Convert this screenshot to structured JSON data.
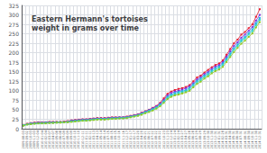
{
  "chart_data": {
    "type": "line",
    "title": "Eastern Hermann's tortoises\nweight in grams over time",
    "categories": [
      "2009-08-03",
      "2009-09-02",
      "2009-10-03",
      "2009-11-03",
      "2009-12-04",
      "2010-01-04",
      "2010-02-04",
      "2010-03-07",
      "2010-04-07",
      "2010-05-08",
      "2010-06-08",
      "2010-07-09",
      "2010-08-09",
      "2010-09-09",
      "2010-10-10",
      "2010-11-10",
      "2010-12-11",
      "2011-01-11",
      "2011-02-11",
      "2011-03-13",
      "2011-04-13",
      "2011-05-14",
      "2011-06-14",
      "2011-07-15",
      "2011-08-15",
      "2011-09-15",
      "2011-10-16",
      "2011-11-16",
      "2011-12-17",
      "2012-01-17",
      "2012-02-17",
      "2012-03-20",
      "2012-04-20",
      "2012-05-21",
      "2012-06-21",
      "2012-07-22",
      "2012-08-22",
      "2012-09-22",
      "2012-10-23",
      "2012-11-23",
      "2012-12-24",
      "2013-01-24",
      "2013-02-24",
      "2013-03-27",
      "2013-04-27",
      "2013-05-28",
      "2013-06-28",
      "2013-07-29",
      "2013-08-29",
      "2013-09-29",
      "2013-10-30",
      "2013-11-30",
      "2013-12-31",
      "2014-01-31",
      "2014-02-28",
      "2014-03-31",
      "2014-04-30",
      "2014-05-31",
      "2014-06-30",
      "2014-07-31",
      "2014-08-31",
      "2014-09-30",
      "2014-10-31",
      "2014-11-30",
      "2014-12-31"
    ],
    "series": [
      {
        "color": "#e8192c",
        "marker": "square",
        "values": [
          10,
          13,
          15,
          16,
          17,
          17,
          17,
          18,
          18,
          18,
          18,
          19,
          20,
          22,
          23,
          24,
          25,
          25,
          26,
          27,
          28,
          28,
          28,
          29,
          30,
          30,
          30,
          30,
          32,
          34,
          36,
          38,
          42,
          46,
          50,
          55,
          60,
          68,
          80,
          92,
          98,
          102,
          105,
          107,
          110,
          115,
          125,
          135,
          140,
          148,
          155,
          162,
          168,
          172,
          180,
          195,
          210,
          225,
          235,
          248,
          255,
          265,
          275,
          295,
          315
        ]
      },
      {
        "color": "#8030e0",
        "marker": "square",
        "values": [
          9,
          12,
          14,
          15,
          16,
          16,
          16,
          17,
          17,
          17,
          17,
          18,
          19,
          21,
          22,
          23,
          24,
          24,
          25,
          26,
          27,
          27,
          27,
          28,
          29,
          29,
          30,
          30,
          31,
          33,
          35,
          37,
          41,
          45,
          49,
          54,
          59,
          66,
          76,
          88,
          94,
          98,
          100,
          103,
          107,
          112,
          120,
          130,
          136,
          144,
          150,
          158,
          164,
          168,
          176,
          190,
          204,
          218,
          228,
          240,
          248,
          258,
          268,
          285,
          300
        ]
      },
      {
        "color": "#20b0e8",
        "marker": "square",
        "values": [
          9,
          12,
          13,
          14,
          15,
          15,
          16,
          16,
          16,
          17,
          17,
          17,
          18,
          20,
          21,
          22,
          23,
          23,
          24,
          25,
          26,
          26,
          26,
          27,
          28,
          28,
          29,
          29,
          30,
          32,
          34,
          36,
          40,
          44,
          48,
          52,
          57,
          64,
          73,
          84,
          90,
          94,
          97,
          99,
          102,
          108,
          117,
          126,
          132,
          140,
          146,
          154,
          160,
          164,
          172,
          185,
          198,
          212,
          222,
          234,
          242,
          252,
          262,
          278,
          292
        ]
      },
      {
        "color": "#30d8c0",
        "marker": "square",
        "values": [
          9,
          11,
          13,
          14,
          14,
          15,
          15,
          16,
          16,
          16,
          17,
          17,
          18,
          19,
          20,
          21,
          22,
          22,
          23,
          24,
          25,
          25,
          25,
          26,
          27,
          27,
          28,
          28,
          29,
          31,
          33,
          35,
          38,
          42,
          46,
          50,
          55,
          62,
          71,
          81,
          87,
          91,
          94,
          96,
          99,
          104,
          113,
          122,
          128,
          136,
          142,
          150,
          156,
          160,
          168,
          181,
          194,
          208,
          218,
          230,
          238,
          248,
          257,
          273,
          287
        ]
      },
      {
        "color": "#90c820",
        "marker": "square",
        "values": [
          8,
          11,
          12,
          13,
          14,
          14,
          14,
          15,
          15,
          16,
          16,
          17,
          17,
          18,
          19,
          20,
          21,
          21,
          22,
          23,
          24,
          24,
          24,
          25,
          26,
          26,
          27,
          27,
          28,
          30,
          32,
          34,
          37,
          41,
          44,
          48,
          53,
          59,
          68,
          78,
          84,
          88,
          90,
          93,
          96,
          100,
          109,
          118,
          124,
          132,
          138,
          146,
          152,
          156,
          163,
          176,
          189,
          202,
          213,
          224,
          232,
          242,
          251,
          267,
          281
        ]
      }
    ],
    "ylim": [
      0,
      325
    ],
    "yticks": [
      0,
      25,
      50,
      75,
      100,
      125,
      150,
      175,
      200,
      225,
      250,
      275,
      300,
      325
    ],
    "grid": true
  }
}
